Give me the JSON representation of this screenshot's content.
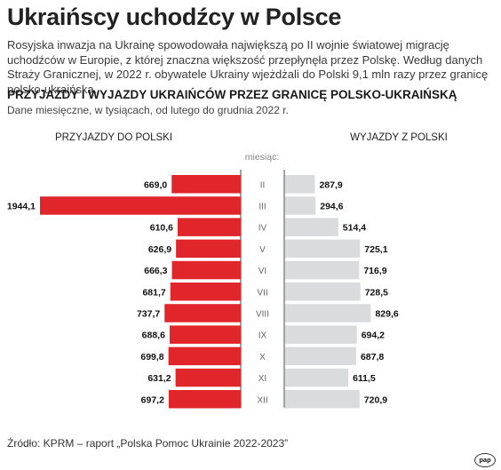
{
  "header": {
    "title": "Ukraińscy uchodźcy w Polsce",
    "intro": "Rosyjska inwazja na Ukrainę spowodowała największą po II wojnie światowej migrację uchodźców w Europie, z której znaczna większość przepłynęła przez Polskę. Według danych Straży Granicznej, w 2022 r. obywatele Ukrainy wjeżdżali do Polski 9,1 mln razy przez granicę polsko-ukraińską."
  },
  "section": {
    "heading": "PRZYJAZDY I WYJAZDY UKRAIŃCÓW PRZEZ GRANICĘ POLSKO-UKRAIŃSKĄ",
    "subtitle": "Dane miesięczne, w tysiącach, od lutego do grudnia 2022 r."
  },
  "footer": {
    "source": "Źródło: KPRM – raport „Polska Pomoc Ukrainie 2022-2023”",
    "logo": "pap"
  },
  "chart_data": {
    "type": "bar",
    "orientation": "horizontal-butterfly",
    "category_label": "miesiąc:",
    "categories": [
      "II",
      "III",
      "IV",
      "V",
      "VI",
      "VII",
      "VIII",
      "IX",
      "X",
      "XI",
      "XII"
    ],
    "series": [
      {
        "name": "PRZYJAZDY DO POLSKI",
        "color": "#e0262b",
        "values": [
          669.0,
          1944.1,
          610.6,
          626.9,
          666.3,
          681.7,
          737.7,
          688.6,
          699.8,
          631.2,
          697.2
        ],
        "labels": [
          "669,0",
          "1944,1",
          "610,6",
          "626,9",
          "666,3",
          "681,7",
          "737,7",
          "688,6",
          "699,8",
          "631,2",
          "697,2"
        ]
      },
      {
        "name": "WYJAZDY Z POLSKI",
        "color": "#d9dbdd",
        "values": [
          287.9,
          294.6,
          514.4,
          725.1,
          716.9,
          728.5,
          829.6,
          694.2,
          687.8,
          611.5,
          720.9
        ],
        "labels": [
          "287,9",
          "294,6",
          "514,4",
          "725,1",
          "716,9",
          "728,5",
          "829,6",
          "694,2",
          "687,8",
          "611,5",
          "720,9"
        ]
      }
    ]
  }
}
